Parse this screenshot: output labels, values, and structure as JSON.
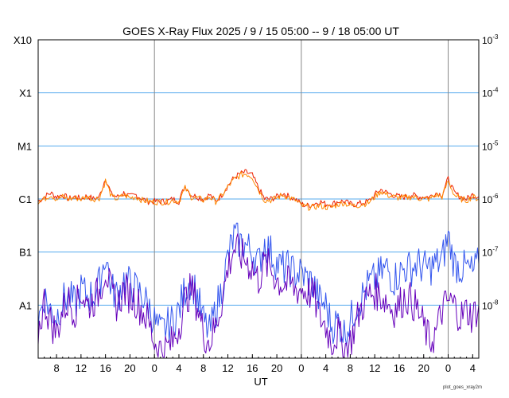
{
  "chart_data": {
    "type": "line",
    "title": "GOES X-Ray Flux   2025  /  9 / 15   05:00 --  9 / 18   05:00   UT",
    "xlabel": "UT",
    "x_tick_labels": [
      "8",
      "12",
      "16",
      "20",
      "0",
      "4",
      "8",
      "12",
      "16",
      "20",
      "0",
      "4",
      "8",
      "12",
      "16",
      "20",
      "0",
      "4"
    ],
    "x_tick_hours": [
      3,
      7,
      11,
      15,
      19,
      23,
      27,
      31,
      35,
      39,
      43,
      47,
      51,
      55,
      59,
      63,
      67,
      71
    ],
    "x_range_hours_after_start": [
      0,
      72
    ],
    "day_boundaries_hours_after_start": [
      19,
      43,
      67
    ],
    "y_scale": "log",
    "y_range_watts_per_m2": [
      1e-09,
      0.001
    ],
    "left_axis_labels": [
      "X10",
      "X1",
      "M1",
      "C1",
      "B1",
      "A1"
    ],
    "right_axis_labels": [
      {
        "base": "10",
        "exp": "-3"
      },
      {
        "base": "10",
        "exp": "-4"
      },
      {
        "base": "10",
        "exp": "-5"
      },
      {
        "base": "10",
        "exp": "-6"
      },
      {
        "base": "10",
        "exp": "-7"
      },
      {
        "base": "10",
        "exp": "-8"
      }
    ],
    "grid_lines_at": [
      0.0001,
      1e-05,
      1e-06,
      1e-07,
      1e-08
    ],
    "series": [
      {
        "key": "long_primary",
        "color": "#ee2200",
        "x": [
          0,
          1,
          2,
          3,
          4,
          5,
          6,
          7,
          8,
          9,
          10,
          11,
          12,
          13,
          14,
          15,
          16,
          17,
          18,
          19,
          20,
          21,
          22,
          23,
          24,
          25,
          26,
          27,
          28,
          29,
          30,
          31,
          32,
          33,
          34,
          35,
          36,
          37,
          38,
          39,
          40,
          41,
          42,
          43,
          44,
          45,
          46,
          47,
          48,
          49,
          50,
          51,
          52,
          53,
          54,
          55,
          56,
          57,
          58,
          59,
          60,
          61,
          62,
          63,
          64,
          65,
          66,
          67,
          68,
          69,
          70,
          71,
          72
        ],
        "y": [
          9e-07,
          1.1e-06,
          1.3e-06,
          1.1e-06,
          1.2e-06,
          1e-06,
          1.1e-06,
          1e-06,
          1.15e-06,
          1e-06,
          1.1e-06,
          2.5e-06,
          1.2e-06,
          1.1e-06,
          1.3e-06,
          1.1e-06,
          1.2e-06,
          1e-06,
          9e-07,
          9e-07,
          9e-07,
          9e-07,
          1e-06,
          9e-07,
          1.8e-06,
          1.2e-06,
          1.1e-06,
          1e-06,
          1.2e-06,
          9e-07,
          1.2e-06,
          1.8e-06,
          2.5e-06,
          3e-06,
          3.2e-06,
          2.8e-06,
          1.6e-06,
          1e-06,
          1e-06,
          1.1e-06,
          1.3e-06,
          1.1e-06,
          1e-06,
          8e-07,
          7.5e-07,
          8e-07,
          9e-07,
          8e-07,
          8e-07,
          9e-07,
          9e-07,
          8e-07,
          8e-07,
          8.5e-07,
          9e-07,
          1.2e-06,
          1.5e-06,
          1.3e-06,
          1.2e-06,
          1.1e-06,
          1.1e-06,
          1.2e-06,
          1.1e-06,
          1.1e-06,
          1.1e-06,
          1.3e-06,
          1.2e-06,
          2.4e-06,
          1.3e-06,
          1.1e-06,
          1e-06,
          1.2e-06,
          1.1e-06
        ]
      },
      {
        "key": "long_secondary",
        "color": "#ff8800",
        "x": [
          0,
          1,
          2,
          3,
          4,
          5,
          6,
          7,
          8,
          9,
          10,
          11,
          12,
          13,
          14,
          15,
          16,
          17,
          18,
          19,
          20,
          21,
          22,
          23,
          24,
          25,
          26,
          27,
          28,
          29,
          30,
          31,
          32,
          33,
          34,
          35,
          36,
          37,
          38,
          39,
          40,
          41,
          42,
          43,
          44,
          45,
          46,
          47,
          48,
          49,
          50,
          51,
          52,
          53,
          54,
          55,
          56,
          57,
          58,
          59,
          60,
          61,
          62,
          63,
          64,
          65,
          66,
          67,
          68,
          69,
          70,
          71,
          72
        ],
        "y": [
          9e-07,
          1e-06,
          1.2e-06,
          1e-06,
          1.1e-06,
          1e-06,
          1.05e-06,
          1e-06,
          1.1e-06,
          1e-06,
          1.05e-06,
          2.2e-06,
          1.1e-06,
          1e-06,
          1.2e-06,
          1.05e-06,
          1.1e-06,
          9.5e-07,
          9e-07,
          8.8e-07,
          8.8e-07,
          8.8e-07,
          9.5e-07,
          9e-07,
          1.6e-06,
          1.1e-06,
          1.05e-06,
          9.5e-07,
          1.1e-06,
          9e-07,
          1.15e-06,
          1.7e-06,
          2.3e-06,
          2.8e-06,
          3e-06,
          2.6e-06,
          1.5e-06,
          9.5e-07,
          9.5e-07,
          1.05e-06,
          1.2e-06,
          1.05e-06,
          9.5e-07,
          7.5e-07,
          7e-07,
          7e-07,
          7.5e-07,
          7e-07,
          7e-07,
          8e-07,
          8.5e-07,
          7.5e-07,
          7.5e-07,
          8e-07,
          8.5e-07,
          1.1e-06,
          1.4e-06,
          1.2e-06,
          1.1e-06,
          1.05e-06,
          1.05e-06,
          1.1e-06,
          1.05e-06,
          1e-06,
          1e-06,
          1.2e-06,
          1.1e-06,
          2.2e-06,
          1.2e-06,
          1e-06,
          9.5e-07,
          1.1e-06,
          1e-06
        ]
      },
      {
        "key": "short_primary",
        "color": "#3355ee",
        "x": [
          0,
          1,
          2,
          3,
          4,
          5,
          6,
          7,
          8,
          9,
          10,
          11,
          12,
          13,
          14,
          15,
          16,
          17,
          18,
          19,
          20,
          21,
          22,
          23,
          24,
          25,
          26,
          27,
          28,
          29,
          30,
          31,
          32,
          33,
          34,
          35,
          36,
          37,
          38,
          39,
          40,
          41,
          42,
          43,
          44,
          45,
          46,
          47,
          48,
          49,
          50,
          51,
          52,
          53,
          54,
          55,
          56,
          57,
          58,
          59,
          60,
          61,
          62,
          63,
          64,
          65,
          66,
          67,
          68,
          69,
          70,
          71,
          72
        ],
        "y": [
          5e-09,
          1.5e-08,
          8e-09,
          6e-09,
          1.2e-08,
          1.5e-08,
          1e-08,
          2e-08,
          1.5e-08,
          1.5e-08,
          2.5e-08,
          9e-08,
          2e-08,
          1.5e-08,
          3e-08,
          2.5e-08,
          2e-08,
          1.5e-08,
          1e-08,
          5e-09,
          3e-09,
          4e-09,
          5e-09,
          8e-09,
          2e-08,
          3e-08,
          1.5e-08,
          5e-09,
          3e-09,
          8e-09,
          2e-08,
          8e-08,
          2e-07,
          1.5e-07,
          1.3e-07,
          1e-07,
          6e-08,
          1.5e-07,
          1e-07,
          6e-08,
          5e-08,
          5e-08,
          4e-08,
          4e-08,
          3e-08,
          2.5e-08,
          1.2e-08,
          1e-08,
          4e-09,
          5e-09,
          3e-09,
          5e-09,
          1e-08,
          1.5e-08,
          2.5e-08,
          3e-08,
          4e-08,
          5e-08,
          3e-08,
          4e-08,
          5e-08,
          5e-08,
          6e-08,
          5e-08,
          5e-08,
          6e-08,
          7e-08,
          2e-07,
          6e-08,
          5e-08,
          5e-08,
          4e-08,
          6e-08
        ]
      },
      {
        "key": "short_secondary",
        "color": "#6600bb",
        "x": [
          0,
          1,
          2,
          3,
          4,
          5,
          6,
          7,
          8,
          9,
          10,
          11,
          12,
          13,
          14,
          15,
          16,
          17,
          18,
          19,
          20,
          21,
          22,
          23,
          24,
          25,
          26,
          27,
          28,
          29,
          30,
          31,
          32,
          33,
          34,
          35,
          36,
          37,
          38,
          39,
          40,
          41,
          42,
          43,
          44,
          45,
          46,
          47,
          48,
          49,
          50,
          51,
          52,
          53,
          54,
          55,
          56,
          57,
          58,
          59,
          60,
          61,
          62,
          63,
          64,
          65,
          66,
          67,
          68,
          69,
          70,
          71,
          72
        ],
        "y": [
          3e-09,
          1.2e-08,
          5e-09,
          3e-09,
          8e-09,
          1.2e-08,
          8e-09,
          1.8e-08,
          1e-08,
          1.2e-08,
          1.8e-08,
          5e-08,
          1.5e-08,
          1e-08,
          2e-08,
          1.5e-08,
          1.2e-08,
          8e-09,
          5e-09,
          2e-09,
          1.5e-09,
          1.5e-09,
          2e-09,
          4e-09,
          1.2e-08,
          2e-08,
          1e-08,
          3e-09,
          2e-09,
          4e-09,
          1.2e-08,
          5e-08,
          1.2e-07,
          9e-08,
          7e-08,
          5e-08,
          3e-08,
          6e-08,
          5e-08,
          3e-08,
          2.5e-08,
          2.5e-08,
          2e-08,
          2e-08,
          1.8e-08,
          1.5e-08,
          6e-09,
          4e-09,
          2e-09,
          3e-09,
          1.5e-09,
          2e-09,
          5e-09,
          1e-08,
          1.5e-08,
          1.8e-08,
          1.5e-08,
          1.2e-08,
          8e-09,
          1e-08,
          1.5e-08,
          1.2e-08,
          8e-09,
          4e-09,
          2e-09,
          3e-09,
          8e-09,
          1.2e-08,
          1e-08,
          6e-09,
          8e-09,
          6e-09,
          1e-08
        ]
      }
    ]
  },
  "credit_text": "plot_goes_xray2m"
}
